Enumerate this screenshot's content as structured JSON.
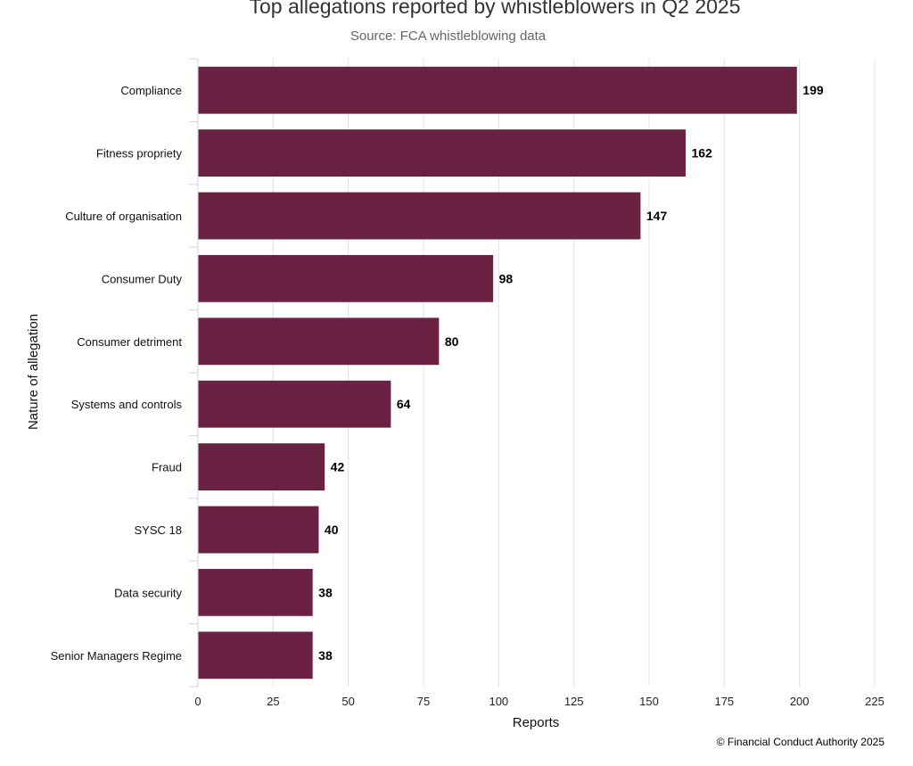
{
  "chart_data": {
    "type": "bar",
    "orientation": "horizontal",
    "title": "Top allegations reported by whistleblowers in Q2 2025",
    "subtitle": "Source: FCA whistleblowing data",
    "xlabel": "Reports",
    "ylabel": "Nature of allegation",
    "categories": [
      "Compliance",
      "Fitness propriety",
      "Culture of organisation",
      "Consumer Duty",
      "Consumer detriment",
      "Systems and controls",
      "Fraud",
      "SYSC 18",
      "Data security",
      "Senior Managers Regime"
    ],
    "values": [
      199,
      162,
      147,
      98,
      80,
      64,
      42,
      40,
      38,
      38
    ],
    "xlim": [
      0,
      225
    ],
    "xticks": [
      0,
      25,
      50,
      75,
      100,
      125,
      150,
      175,
      200,
      225
    ],
    "grid": "vertical",
    "bar_color": "#6b2142",
    "data_labels": true,
    "credit": "© Financial Conduct Authority 2025"
  }
}
